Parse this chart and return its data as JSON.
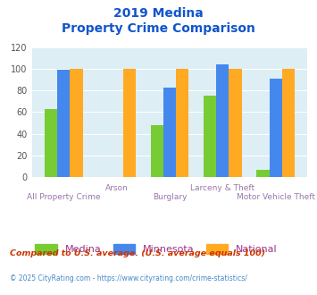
{
  "title_line1": "2019 Medina",
  "title_line2": "Property Crime Comparison",
  "categories": [
    "All Property Crime",
    "Arson",
    "Burglary",
    "Larceny & Theft",
    "Motor Vehicle Theft"
  ],
  "series": {
    "Medina": [
      63,
      0,
      48,
      75,
      7
    ],
    "Minnesota": [
      99,
      0,
      83,
      104,
      91
    ],
    "National": [
      100,
      100,
      100,
      100,
      100
    ]
  },
  "colors": {
    "Medina": "#77cc33",
    "Minnesota": "#4488ee",
    "National": "#ffaa22"
  },
  "ylim": [
    0,
    120
  ],
  "yticks": [
    0,
    20,
    40,
    60,
    80,
    100,
    120
  ],
  "title_color": "#1155cc",
  "axis_label_color": "#9977aa",
  "legend_label_color": "#993388",
  "footnote1": "Compared to U.S. average. (U.S. average equals 100)",
  "footnote2": "© 2025 CityRating.com - https://www.cityrating.com/crime-statistics/",
  "footnote1_color": "#cc3300",
  "footnote2_color": "#4488cc",
  "bg_color": "#ffffff",
  "plot_bg_color": "#ddeef5"
}
